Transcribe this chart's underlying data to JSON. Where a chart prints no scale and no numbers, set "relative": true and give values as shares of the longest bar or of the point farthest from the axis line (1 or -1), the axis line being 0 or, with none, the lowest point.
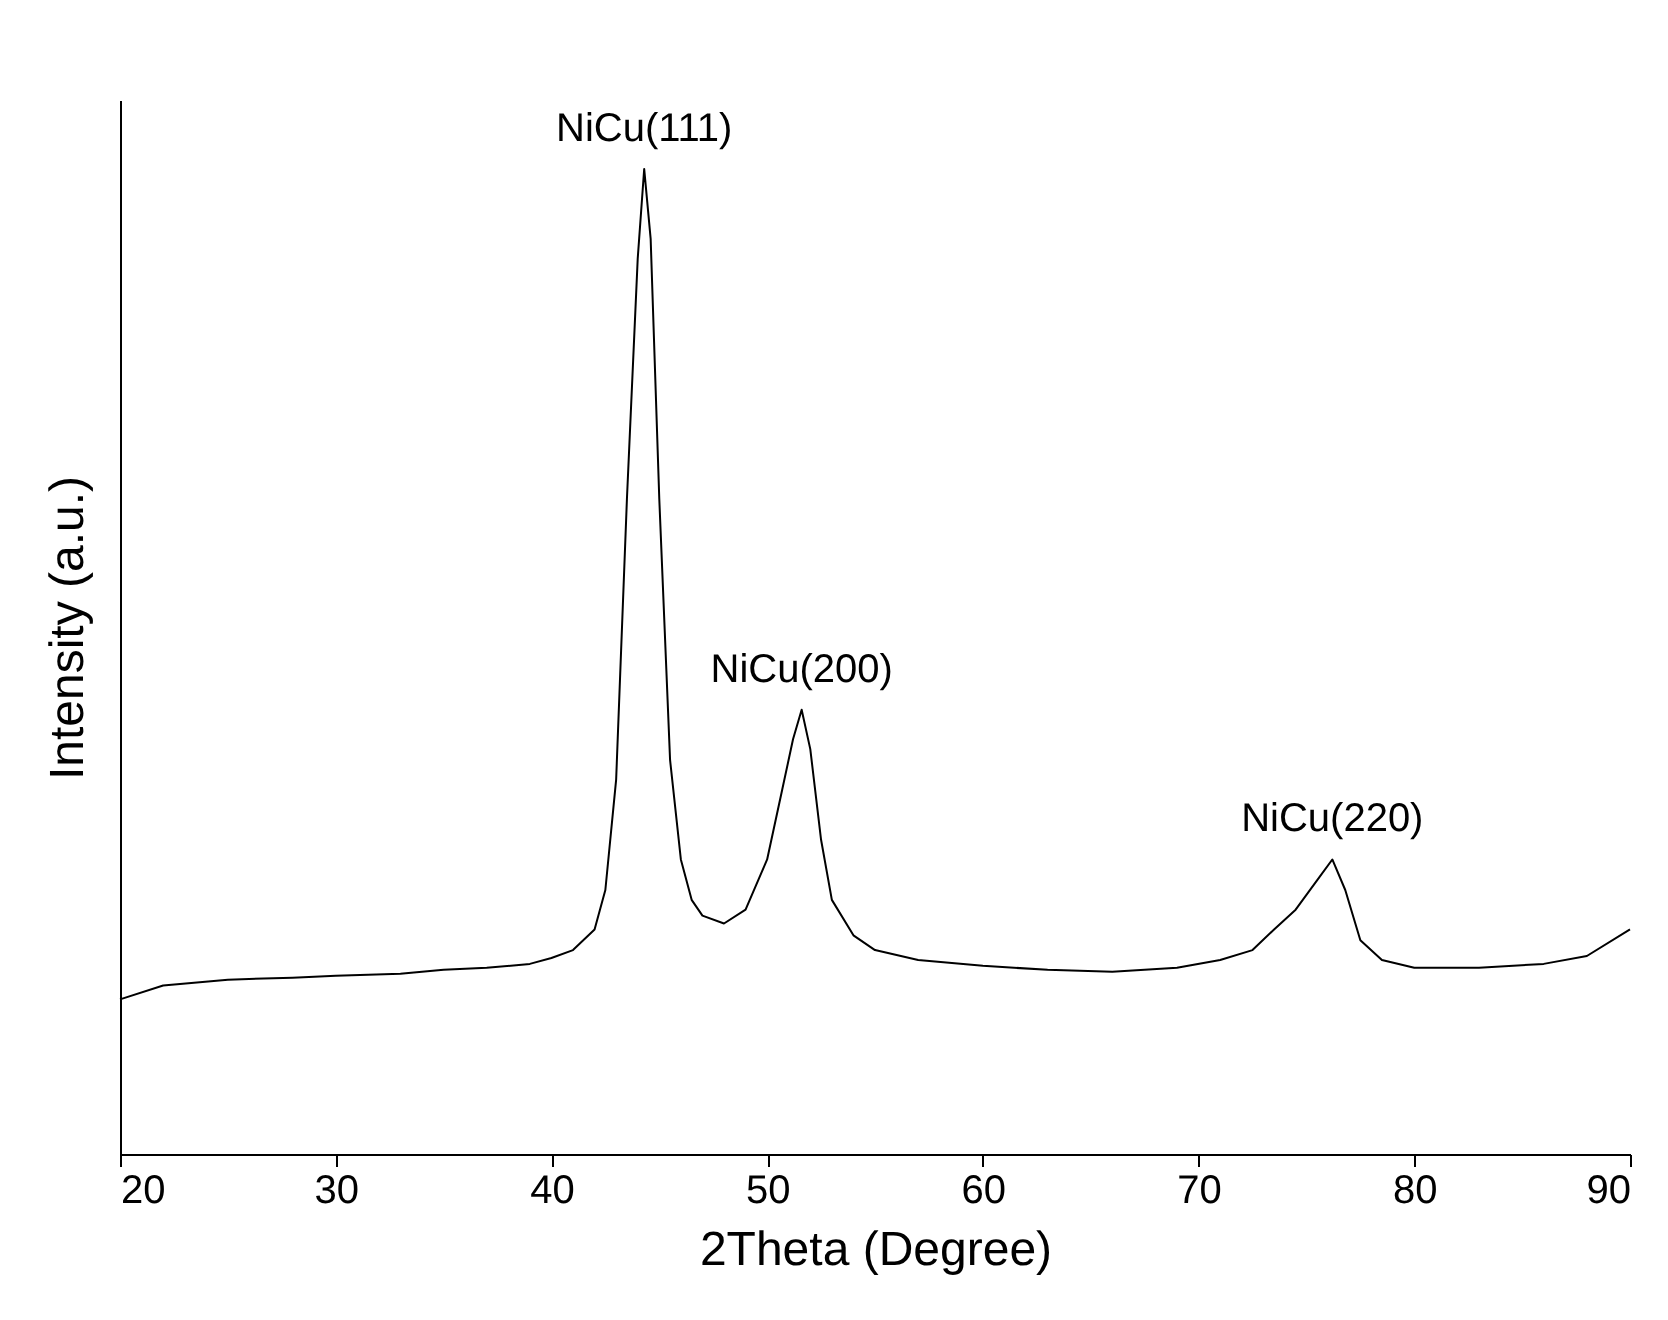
{
  "chart_data": {
    "type": "line",
    "xlabel": "2Theta (Degree)",
    "ylabel": "Intensity (a.u.)",
    "relative": true,
    "xlim": [
      20,
      90
    ],
    "xticks": [
      20,
      30,
      40,
      50,
      60,
      70,
      80,
      90
    ],
    "x": [
      20,
      22,
      25,
      28,
      30,
      33,
      35,
      37,
      39,
      40,
      41,
      42,
      42.5,
      43,
      43.5,
      44,
      44.3,
      44.6,
      45,
      45.5,
      46,
      46.5,
      47,
      48,
      49,
      50,
      50.7,
      51.2,
      51.6,
      52,
      52.5,
      53,
      54,
      55,
      57,
      60,
      63,
      66,
      69,
      71,
      72.5,
      73.5,
      74.5,
      75.5,
      76.2,
      76.8,
      77.5,
      78.5,
      80,
      83,
      86,
      88,
      90
    ],
    "series": [
      {
        "color": "#000000",
        "values": [
          0.157,
          0.171,
          0.177,
          0.179,
          0.181,
          0.183,
          0.187,
          0.189,
          0.193,
          0.199,
          0.207,
          0.228,
          0.268,
          0.38,
          0.665,
          0.909,
          1,
          0.929,
          0.665,
          0.4,
          0.299,
          0.258,
          0.242,
          0.234,
          0.248,
          0.299,
          0.37,
          0.421,
          0.451,
          0.411,
          0.319,
          0.258,
          0.222,
          0.207,
          0.197,
          0.191,
          0.187,
          0.185,
          0.189,
          0.197,
          0.207,
          0.228,
          0.248,
          0.278,
          0.299,
          0.268,
          0.217,
          0.197,
          0.189,
          0.189,
          0.193,
          0.201,
          0.228
        ]
      }
    ],
    "annotations": [
      {
        "text": "NiCu(111)",
        "x": 44.3,
        "y": 1
      },
      {
        "text": "NiCu(200)",
        "x": 51.6,
        "y": 0.451
      },
      {
        "text": "NiCu(220)",
        "x": 76.2,
        "y": 0.299
      }
    ]
  }
}
